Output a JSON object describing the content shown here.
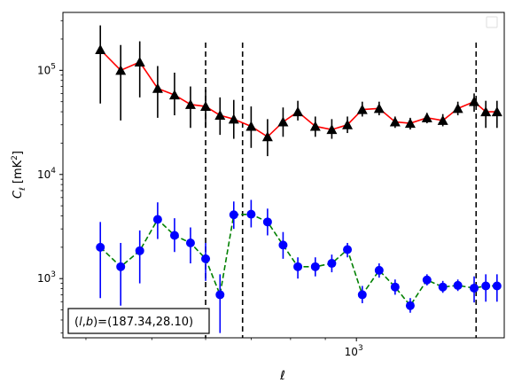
{
  "chart_data": {
    "type": "scatter",
    "xlabel": "ℓ",
    "ylabel_main": "C",
    "ylabel_sub": "ℓ",
    "ylabel_unit_pre": "[mK",
    "ylabel_unit_sup": "2",
    "ylabel_unit_post": "]",
    "xscale": "log",
    "yscale": "log",
    "xlim": [
      370,
      1650
    ],
    "ylim": [
      270,
      360000
    ],
    "x_tick_labels": [
      {
        "value": 1000,
        "base": "10",
        "exp": "3"
      }
    ],
    "y_tick_labels": [
      {
        "value": 1000,
        "base": "10",
        "exp": "3"
      },
      {
        "value": 10000,
        "base": "10",
        "exp": "4"
      },
      {
        "value": 100000,
        "base": "10",
        "exp": "5"
      }
    ],
    "vlines": [
      600,
      680,
      1500
    ],
    "annotation": {
      "prefix": "(",
      "l": "l",
      "comma": ",",
      "b": "b",
      "suffix": ")=(187.34,28.10)"
    },
    "legend": "top-right",
    "series": [
      {
        "marker": "triangle",
        "marker_color": "#000000",
        "line_color": "#ff0000",
        "line_style": "solid",
        "x": [
          420,
          450,
          480,
          510,
          540,
          570,
          600,
          630,
          660,
          700,
          740,
          780,
          820,
          870,
          920,
          970,
          1020,
          1080,
          1140,
          1200,
          1270,
          1340,
          1410,
          1490,
          1550,
          1610
        ],
        "y": [
          158000,
          100000,
          120000,
          67000,
          58000,
          47000,
          45000,
          37000,
          34000,
          29000,
          23000,
          32000,
          40000,
          29000,
          27000,
          30000,
          42000,
          43000,
          32000,
          31000,
          35000,
          33000,
          43000,
          50000,
          40000,
          40000
        ],
        "err_lo": [
          48000,
          33000,
          55000,
          35000,
          37000,
          28000,
          28000,
          24000,
          22000,
          18000,
          15000,
          23000,
          33000,
          23000,
          22000,
          25000,
          36000,
          37000,
          28000,
          27000,
          31000,
          29000,
          37000,
          40000,
          28000,
          28000
        ],
        "err_hi": [
          270000,
          175000,
          190000,
          110000,
          95000,
          70000,
          65000,
          55000,
          52000,
          45000,
          34000,
          44000,
          51000,
          36000,
          34000,
          36000,
          50000,
          50000,
          36000,
          35000,
          39000,
          38000,
          50000,
          60000,
          51000,
          51000
        ]
      },
      {
        "marker": "circle",
        "marker_color": "#0000ff",
        "line_color": "#008000",
        "line_style": "dashed",
        "x": [
          420,
          450,
          480,
          510,
          540,
          570,
          600,
          630,
          660,
          700,
          740,
          780,
          820,
          870,
          920,
          970,
          1020,
          1080,
          1140,
          1200,
          1270,
          1340,
          1410,
          1490,
          1550,
          1610
        ],
        "y": [
          2000,
          1300,
          1850,
          3700,
          2600,
          2200,
          1550,
          700,
          4100,
          4150,
          3500,
          2100,
          1300,
          1300,
          1400,
          1900,
          700,
          1200,
          830,
          550,
          970,
          830,
          860,
          810,
          850,
          850
        ],
        "err_lo": [
          650,
          550,
          900,
          2400,
          1800,
          1400,
          950,
          300,
          3000,
          3100,
          2600,
          1550,
          1000,
          1050,
          1150,
          1600,
          580,
          1020,
          700,
          470,
          860,
          730,
          760,
          590,
          600,
          600
        ],
        "err_hi": [
          3500,
          2200,
          2900,
          5400,
          3800,
          3100,
          2200,
          1100,
          5500,
          5700,
          4700,
          2800,
          1600,
          1600,
          1700,
          2200,
          850,
          1400,
          980,
          650,
          1100,
          950,
          980,
          1050,
          1100,
          1100
        ]
      }
    ]
  }
}
